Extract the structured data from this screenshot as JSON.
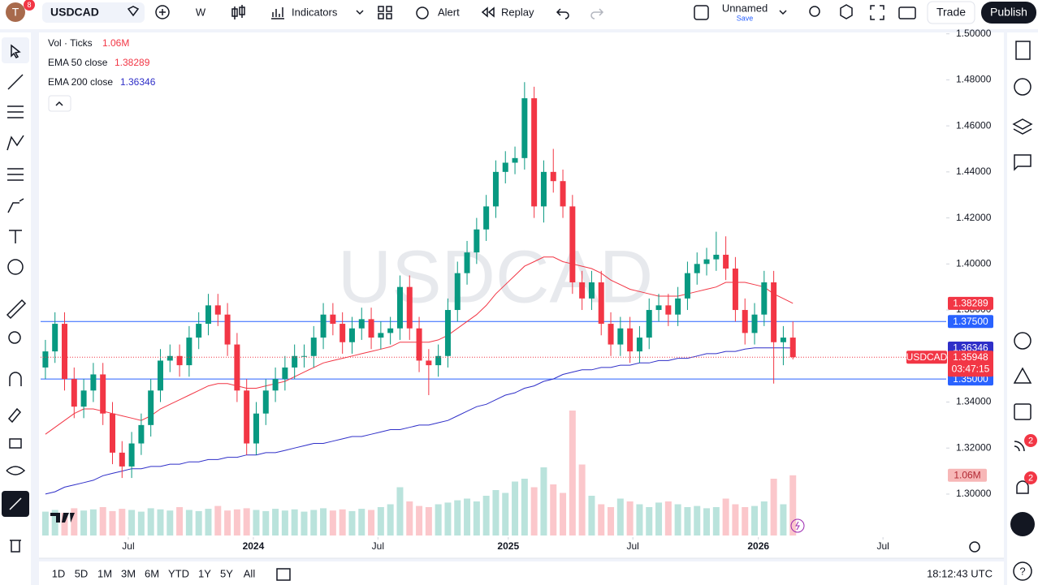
{
  "toolbar": {
    "avatar": "T",
    "badge": "8",
    "symbol": "USDCAD",
    "interval": "W",
    "indicators": "Indicators",
    "alert": "Alert",
    "replay": "Replay",
    "layout_name": "Unnamed",
    "save": "Save",
    "trade": "Trade",
    "publish": "Publish"
  },
  "bottom_bar": {
    "ranges": [
      "1D",
      "5D",
      "1M",
      "3M",
      "6M",
      "YTD",
      "1Y",
      "5Y",
      "All"
    ],
    "clock": "18:12:43 UTC"
  },
  "right_sidebar": {
    "badges": [
      "2",
      "2"
    ]
  },
  "chart_data": {
    "type": "candlestick",
    "watermark": "USDCAD",
    "symbol_tag": "USDCAD",
    "countdown": "03:47:15",
    "up_color": "#089981",
    "down_color": "#f23645",
    "xlim": [
      -0.5,
      94
    ],
    "xticks": [
      {
        "value": 8.65,
        "label": "Jul"
      },
      {
        "value": 21.7,
        "label": "2024"
      },
      {
        "value": 34.7,
        "label": "Jul"
      },
      {
        "value": 48.3,
        "label": "2025"
      },
      {
        "value": 61.3,
        "label": "Jul"
      },
      {
        "value": 74.4,
        "label": "2026"
      },
      {
        "value": 87.4,
        "label": "Jul"
      }
    ],
    "ylim": [
      1.282,
      1.502
    ],
    "yticks": [
      {
        "value": 1.3,
        "label": "1.30000"
      },
      {
        "value": 1.32,
        "label": "1.32000"
      },
      {
        "value": 1.34,
        "label": "1.34000"
      },
      {
        "value": 1.36,
        "label": "1.36000"
      },
      {
        "value": 1.38,
        "label": "1.38000"
      },
      {
        "value": 1.4,
        "label": "1.40000"
      },
      {
        "value": 1.42,
        "label": "1.42000"
      },
      {
        "value": 1.44,
        "label": "1.44000"
      },
      {
        "value": 1.46,
        "label": "1.46000"
      },
      {
        "value": 1.48,
        "label": "1.48000"
      },
      {
        "value": 1.5,
        "label": "1.50000"
      }
    ],
    "open": [
      1.355,
      1.362,
      1.374,
      1.35,
      1.338,
      1.345,
      1.352,
      1.335,
      1.318,
      1.312,
      1.322,
      1.33,
      1.345,
      1.358,
      1.36,
      1.356,
      1.368,
      1.374,
      1.382,
      1.378,
      1.365,
      1.345,
      1.322,
      1.335,
      1.345,
      1.35,
      1.355,
      1.36,
      1.36,
      1.368,
      1.378,
      1.374,
      1.366,
      1.372,
      1.376,
      1.368,
      1.37,
      1.372,
      1.39,
      1.372,
      1.358,
      1.356,
      1.36,
      1.38,
      1.396,
      1.405,
      1.415,
      1.425,
      1.44,
      1.444,
      1.446,
      1.472,
      1.425,
      1.44,
      1.436,
      1.425,
      1.392,
      1.385,
      1.392,
      1.374,
      1.365,
      1.372,
      1.362,
      1.368,
      1.38,
      1.382,
      1.378,
      1.385,
      1.396,
      1.4,
      1.402,
      1.404,
      1.398,
      1.38,
      1.37,
      1.378,
      1.392,
      1.366,
      1.368
    ],
    "high": [
      1.367,
      1.379,
      1.379,
      1.355,
      1.35,
      1.357,
      1.357,
      1.34,
      1.323,
      1.327,
      1.335,
      1.35,
      1.363,
      1.365,
      1.365,
      1.373,
      1.379,
      1.387,
      1.387,
      1.383,
      1.37,
      1.35,
      1.34,
      1.35,
      1.355,
      1.36,
      1.365,
      1.365,
      1.373,
      1.383,
      1.383,
      1.379,
      1.377,
      1.381,
      1.381,
      1.375,
      1.377,
      1.395,
      1.395,
      1.377,
      1.363,
      1.365,
      1.385,
      1.401,
      1.41,
      1.42,
      1.43,
      1.445,
      1.449,
      1.451,
      1.479,
      1.477,
      1.445,
      1.45,
      1.441,
      1.43,
      1.397,
      1.397,
      1.397,
      1.379,
      1.377,
      1.377,
      1.373,
      1.385,
      1.387,
      1.387,
      1.39,
      1.401,
      1.405,
      1.407,
      1.414,
      1.412,
      1.403,
      1.385,
      1.383,
      1.397,
      1.397,
      1.373,
      1.375
    ],
    "low": [
      1.35,
      1.357,
      1.345,
      1.333,
      1.333,
      1.34,
      1.33,
      1.313,
      1.307,
      1.307,
      1.317,
      1.325,
      1.34,
      1.353,
      1.351,
      1.351,
      1.363,
      1.369,
      1.373,
      1.36,
      1.34,
      1.317,
      1.317,
      1.33,
      1.34,
      1.345,
      1.35,
      1.355,
      1.355,
      1.363,
      1.369,
      1.361,
      1.361,
      1.367,
      1.363,
      1.363,
      1.365,
      1.367,
      1.367,
      1.353,
      1.343,
      1.351,
      1.355,
      1.375,
      1.391,
      1.4,
      1.41,
      1.42,
      1.435,
      1.439,
      1.441,
      1.42,
      1.418,
      1.431,
      1.42,
      1.387,
      1.38,
      1.38,
      1.369,
      1.36,
      1.36,
      1.357,
      1.357,
      1.363,
      1.375,
      1.373,
      1.373,
      1.38,
      1.391,
      1.395,
      1.397,
      1.393,
      1.375,
      1.365,
      1.365,
      1.373,
      1.348,
      1.356,
      1.3585
    ],
    "close": [
      1.362,
      1.374,
      1.35,
      1.338,
      1.345,
      1.352,
      1.335,
      1.318,
      1.312,
      1.322,
      1.33,
      1.345,
      1.358,
      1.36,
      1.356,
      1.368,
      1.374,
      1.382,
      1.378,
      1.365,
      1.345,
      1.322,
      1.335,
      1.345,
      1.35,
      1.355,
      1.36,
      1.36,
      1.368,
      1.378,
      1.374,
      1.366,
      1.372,
      1.376,
      1.368,
      1.37,
      1.372,
      1.39,
      1.372,
      1.358,
      1.356,
      1.36,
      1.38,
      1.396,
      1.405,
      1.415,
      1.425,
      1.44,
      1.444,
      1.446,
      1.472,
      1.425,
      1.44,
      1.436,
      1.425,
      1.392,
      1.385,
      1.392,
      1.374,
      1.365,
      1.372,
      1.362,
      1.368,
      1.38,
      1.382,
      1.378,
      1.385,
      1.396,
      1.4,
      1.402,
      1.404,
      1.398,
      1.38,
      1.37,
      1.378,
      1.392,
      1.366,
      1.368,
      1.35948
    ],
    "volume": {
      "name": "Vol · Ticks",
      "last_label": "1.06M",
      "values": [
        0.42,
        0.45,
        0.4,
        0.48,
        0.44,
        0.46,
        0.5,
        0.43,
        0.47,
        0.45,
        0.42,
        0.48,
        0.46,
        0.44,
        0.5,
        0.45,
        0.43,
        0.47,
        0.52,
        0.44,
        0.46,
        0.48,
        0.45,
        0.43,
        0.47,
        0.44,
        0.46,
        0.42,
        0.45,
        0.48,
        0.44,
        0.46,
        0.43,
        0.47,
        0.45,
        0.5,
        0.55,
        0.85,
        0.6,
        0.52,
        0.5,
        0.55,
        0.58,
        0.62,
        0.65,
        0.6,
        0.7,
        0.8,
        0.75,
        0.95,
        1.0,
        0.85,
        1.2,
        0.9,
        0.75,
        2.2,
        1.25,
        0.7,
        0.55,
        0.5,
        0.65,
        0.6,
        0.55,
        0.5,
        0.58,
        0.6,
        0.55,
        0.5,
        0.52,
        0.48,
        0.5,
        0.65,
        0.55,
        0.5,
        0.52,
        0.6,
        1.0,
        0.55,
        1.06
      ]
    },
    "series": [
      {
        "name": "EMA 50 close",
        "color": "#f23645",
        "values": [
          1.326,
          1.329,
          1.332,
          1.335,
          1.337,
          1.337,
          1.336,
          1.335,
          1.334,
          1.333,
          1.332,
          1.334,
          1.337,
          1.339,
          1.341,
          1.343,
          1.345,
          1.347,
          1.348,
          1.348,
          1.347,
          1.346,
          1.346,
          1.347,
          1.348,
          1.349,
          1.351,
          1.353,
          1.355,
          1.357,
          1.358,
          1.359,
          1.36,
          1.361,
          1.362,
          1.363,
          1.364,
          1.366,
          1.366,
          1.366,
          1.366,
          1.367,
          1.369,
          1.372,
          1.375,
          1.378,
          1.382,
          1.387,
          1.391,
          1.395,
          1.399,
          1.401,
          1.403,
          1.403,
          1.401,
          1.4,
          1.399,
          1.398,
          1.396,
          1.393,
          1.391,
          1.389,
          1.388,
          1.387,
          1.386,
          1.386,
          1.386,
          1.387,
          1.388,
          1.389,
          1.39,
          1.392,
          1.392,
          1.392,
          1.391,
          1.39,
          1.387,
          1.385,
          1.38289
        ]
      },
      {
        "name": "EMA 200 close",
        "color": "#2f2fc8",
        "values": [
          1.3,
          1.301,
          1.303,
          1.304,
          1.305,
          1.306,
          1.308,
          1.309,
          1.31,
          1.311,
          1.311,
          1.312,
          1.312,
          1.313,
          1.313,
          1.314,
          1.314,
          1.315,
          1.315,
          1.316,
          1.316,
          1.317,
          1.317,
          1.318,
          1.318,
          1.319,
          1.32,
          1.321,
          1.322,
          1.322,
          1.323,
          1.324,
          1.325,
          1.325,
          1.326,
          1.327,
          1.328,
          1.328,
          1.329,
          1.33,
          1.33,
          1.331,
          1.332,
          1.334,
          1.336,
          1.338,
          1.339,
          1.341,
          1.343,
          1.344,
          1.346,
          1.347,
          1.349,
          1.35,
          1.352,
          1.353,
          1.354,
          1.354,
          1.355,
          1.355,
          1.356,
          1.356,
          1.357,
          1.357,
          1.358,
          1.358,
          1.359,
          1.359,
          1.36,
          1.361,
          1.361,
          1.362,
          1.362,
          1.363,
          1.3635,
          1.3635,
          1.3635,
          1.3635,
          1.36346
        ]
      }
    ],
    "hlines": [
      {
        "value": 1.375,
        "label": "1.37500",
        "color": "#2962ff"
      },
      {
        "value": 1.35,
        "label": "1.35000",
        "color": "#2962ff"
      }
    ]
  }
}
